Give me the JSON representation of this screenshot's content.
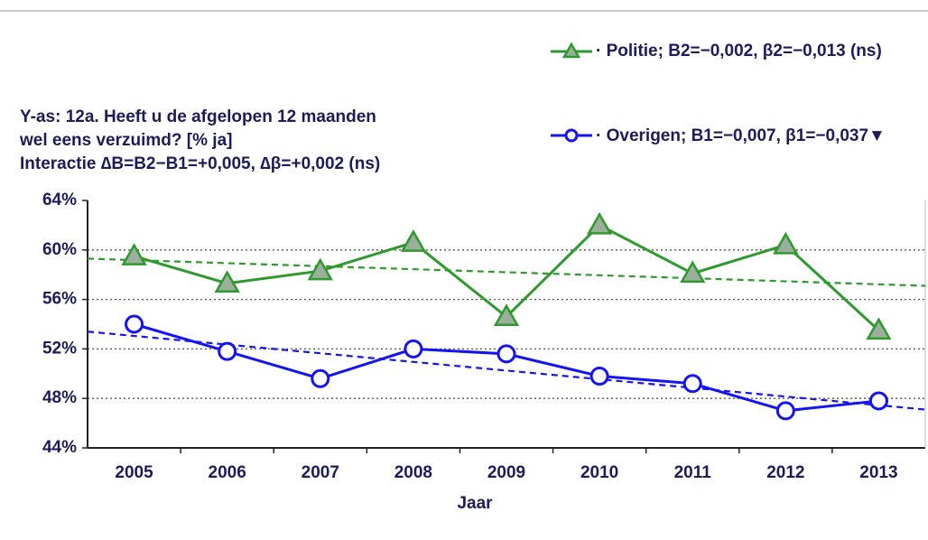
{
  "chart_data": {
    "type": "line",
    "note_lines": [
      "Y-as: 12a. Heeft u de afgelopen 12 maanden",
      "wel eens verzuimd? [% ja]",
      "Interactie ∆B=B2−B1=+0,005, ∆β=+0,002 (ns)"
    ],
    "x_label": "Jaar",
    "categories": [
      "2005",
      "2006",
      "2007",
      "2008",
      "2009",
      "2010",
      "2011",
      "2012",
      "2013"
    ],
    "series": [
      {
        "name": "· Politie; B2=−0,002, β2=−0,013 (ns)",
        "color": "#2e9a2e",
        "marker": "triangle",
        "values": [
          59.5,
          57.3,
          58.3,
          60.6,
          54.6,
          62.0,
          58.1,
          60.4,
          53.5
        ],
        "trend": [
          59.3,
          57.1
        ]
      },
      {
        "name": "· Overigen; B1=−0,007, β1=−0,037▼",
        "color": "#1414f0",
        "marker": "circle",
        "values": [
          54.0,
          51.8,
          49.6,
          52.0,
          51.6,
          49.8,
          49.2,
          47.0,
          47.8
        ],
        "trend": [
          53.4,
          47.1
        ]
      }
    ],
    "ylim": [
      44,
      64
    ],
    "yticks": [
      {
        "value": 44,
        "label": "44%"
      },
      {
        "value": 48,
        "label": "48%"
      },
      {
        "value": 52,
        "label": "52%"
      },
      {
        "value": 56,
        "label": "56%"
      },
      {
        "value": 60,
        "label": "60%"
      },
      {
        "value": 64,
        "label": "64%"
      }
    ],
    "grid": true
  }
}
